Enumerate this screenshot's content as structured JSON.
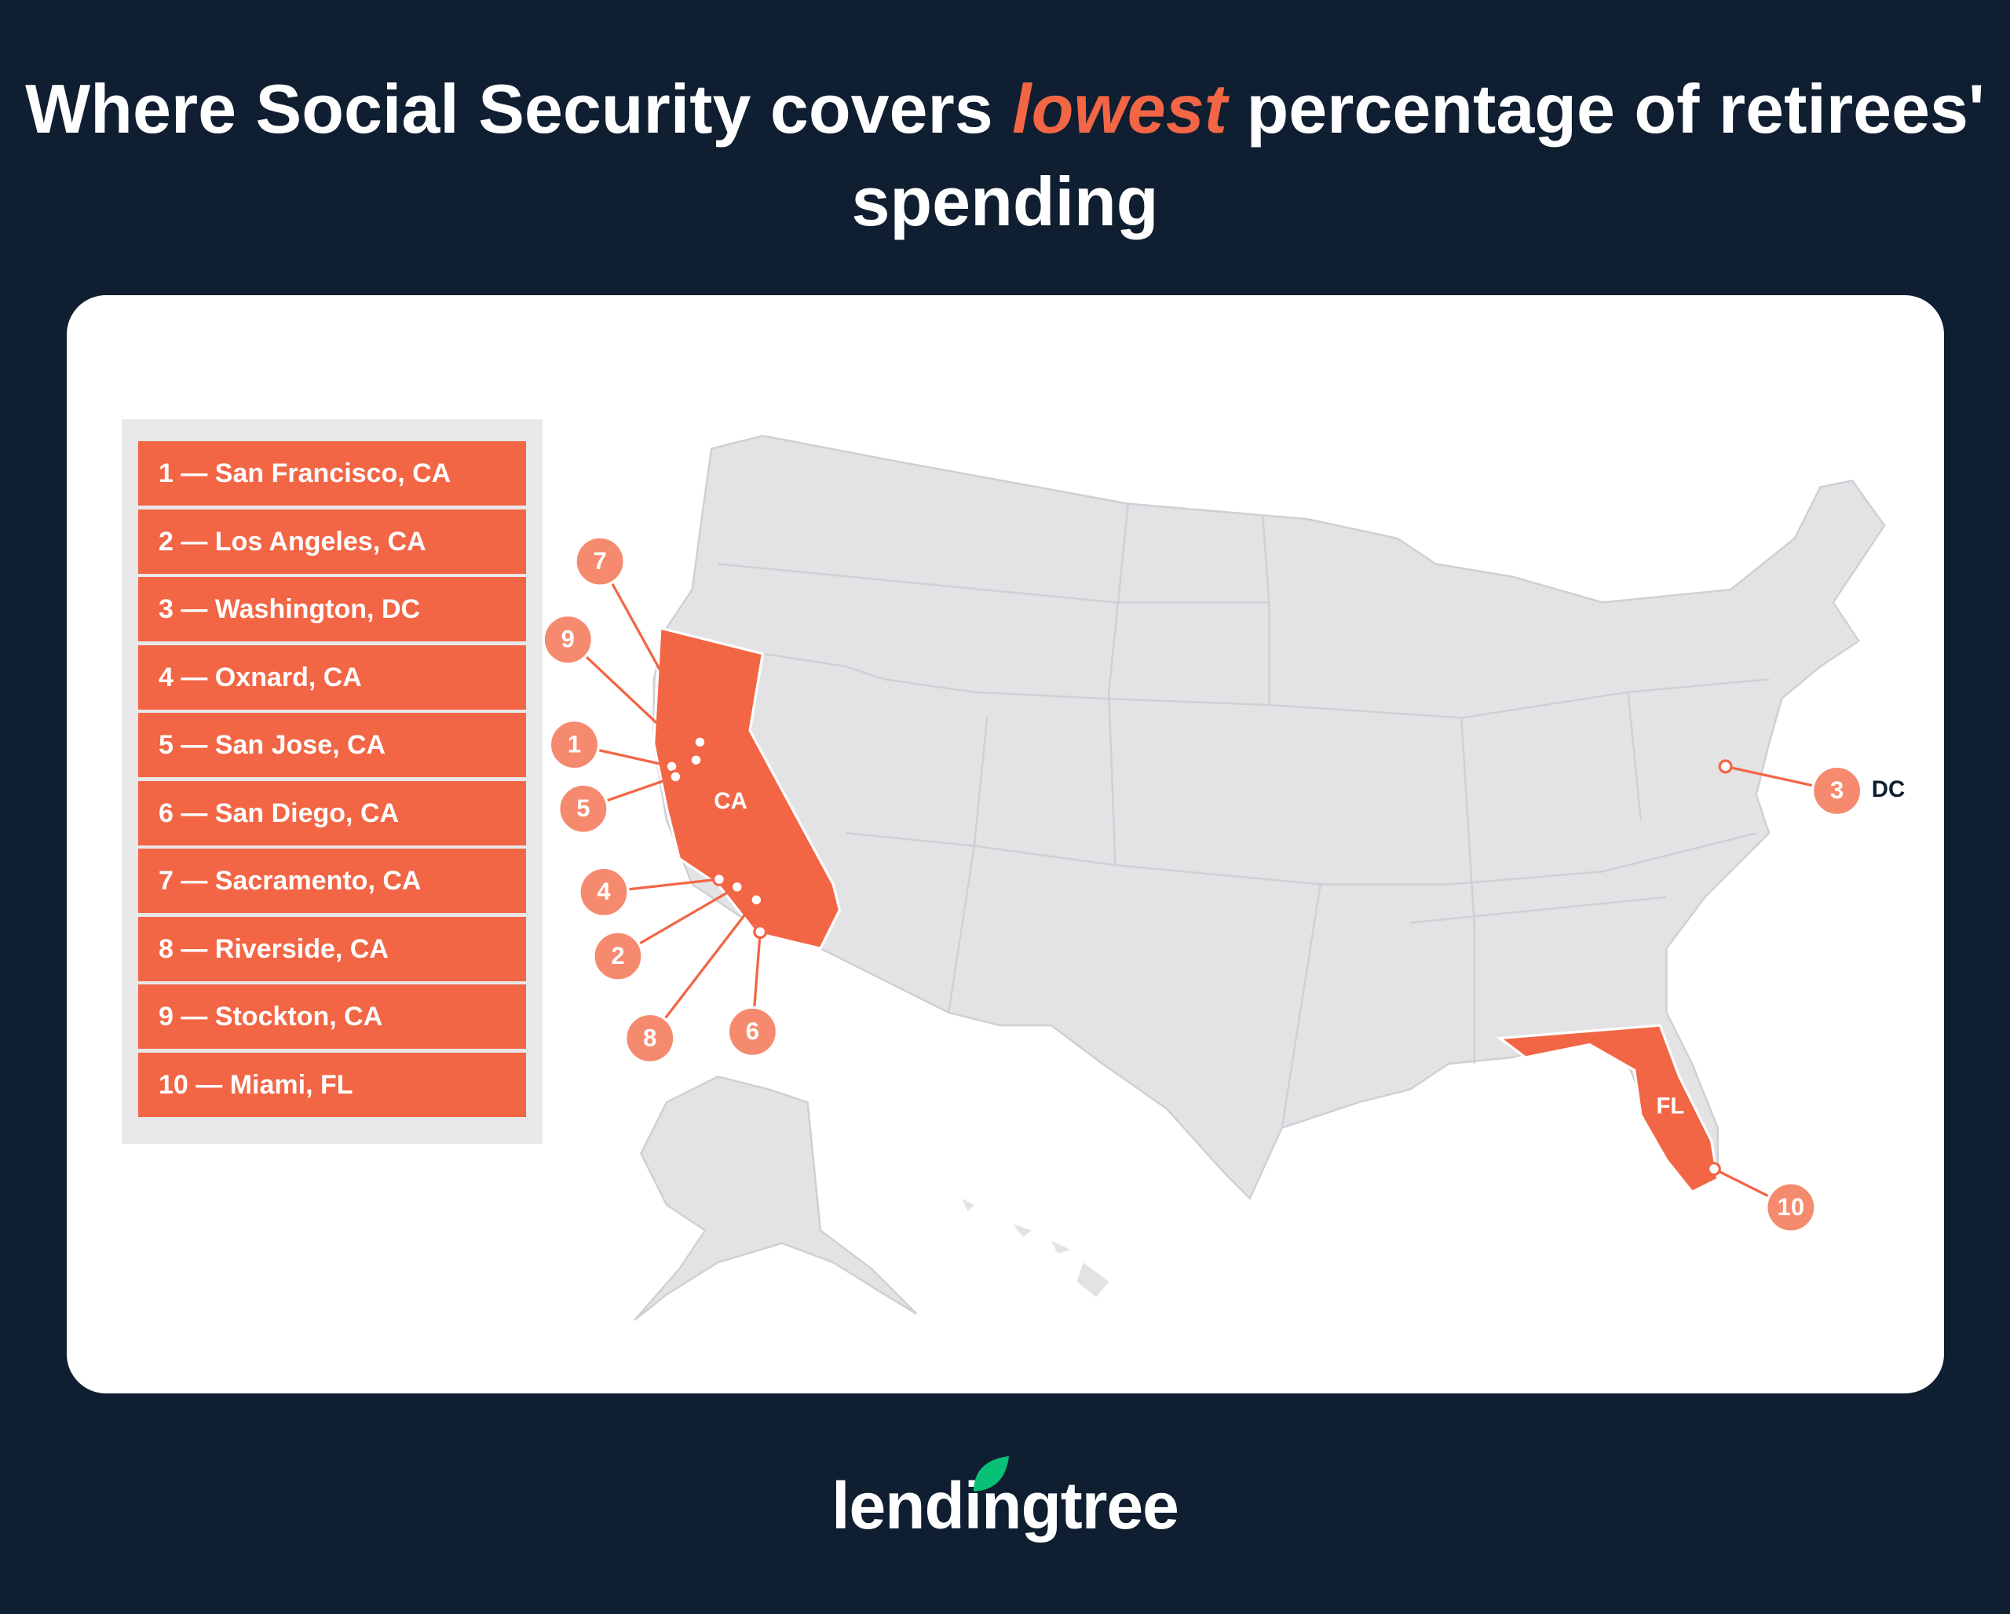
{
  "title": {
    "before": "Where Social Security covers",
    "highlight": "lowest",
    "after": "percentage of retirees' spending"
  },
  "ranking": [
    "1 — San Francisco, CA",
    "2 — Los Angeles, CA",
    "3 — Washington, DC",
    "4 — Oxnard, CA",
    "5 — San Jose, CA",
    "6 — San Diego, CA",
    "7 — Sacramento, CA",
    "8 — Riverside, CA",
    "9 — Stockton, CA",
    "10 — Miami, FL"
  ],
  "markers": [
    "1",
    "2",
    "3",
    "4",
    "5",
    "6",
    "7",
    "8",
    "9",
    "10"
  ],
  "state_labels": [
    "CA",
    "FL",
    "DC"
  ],
  "logo": "lendingtree"
}
